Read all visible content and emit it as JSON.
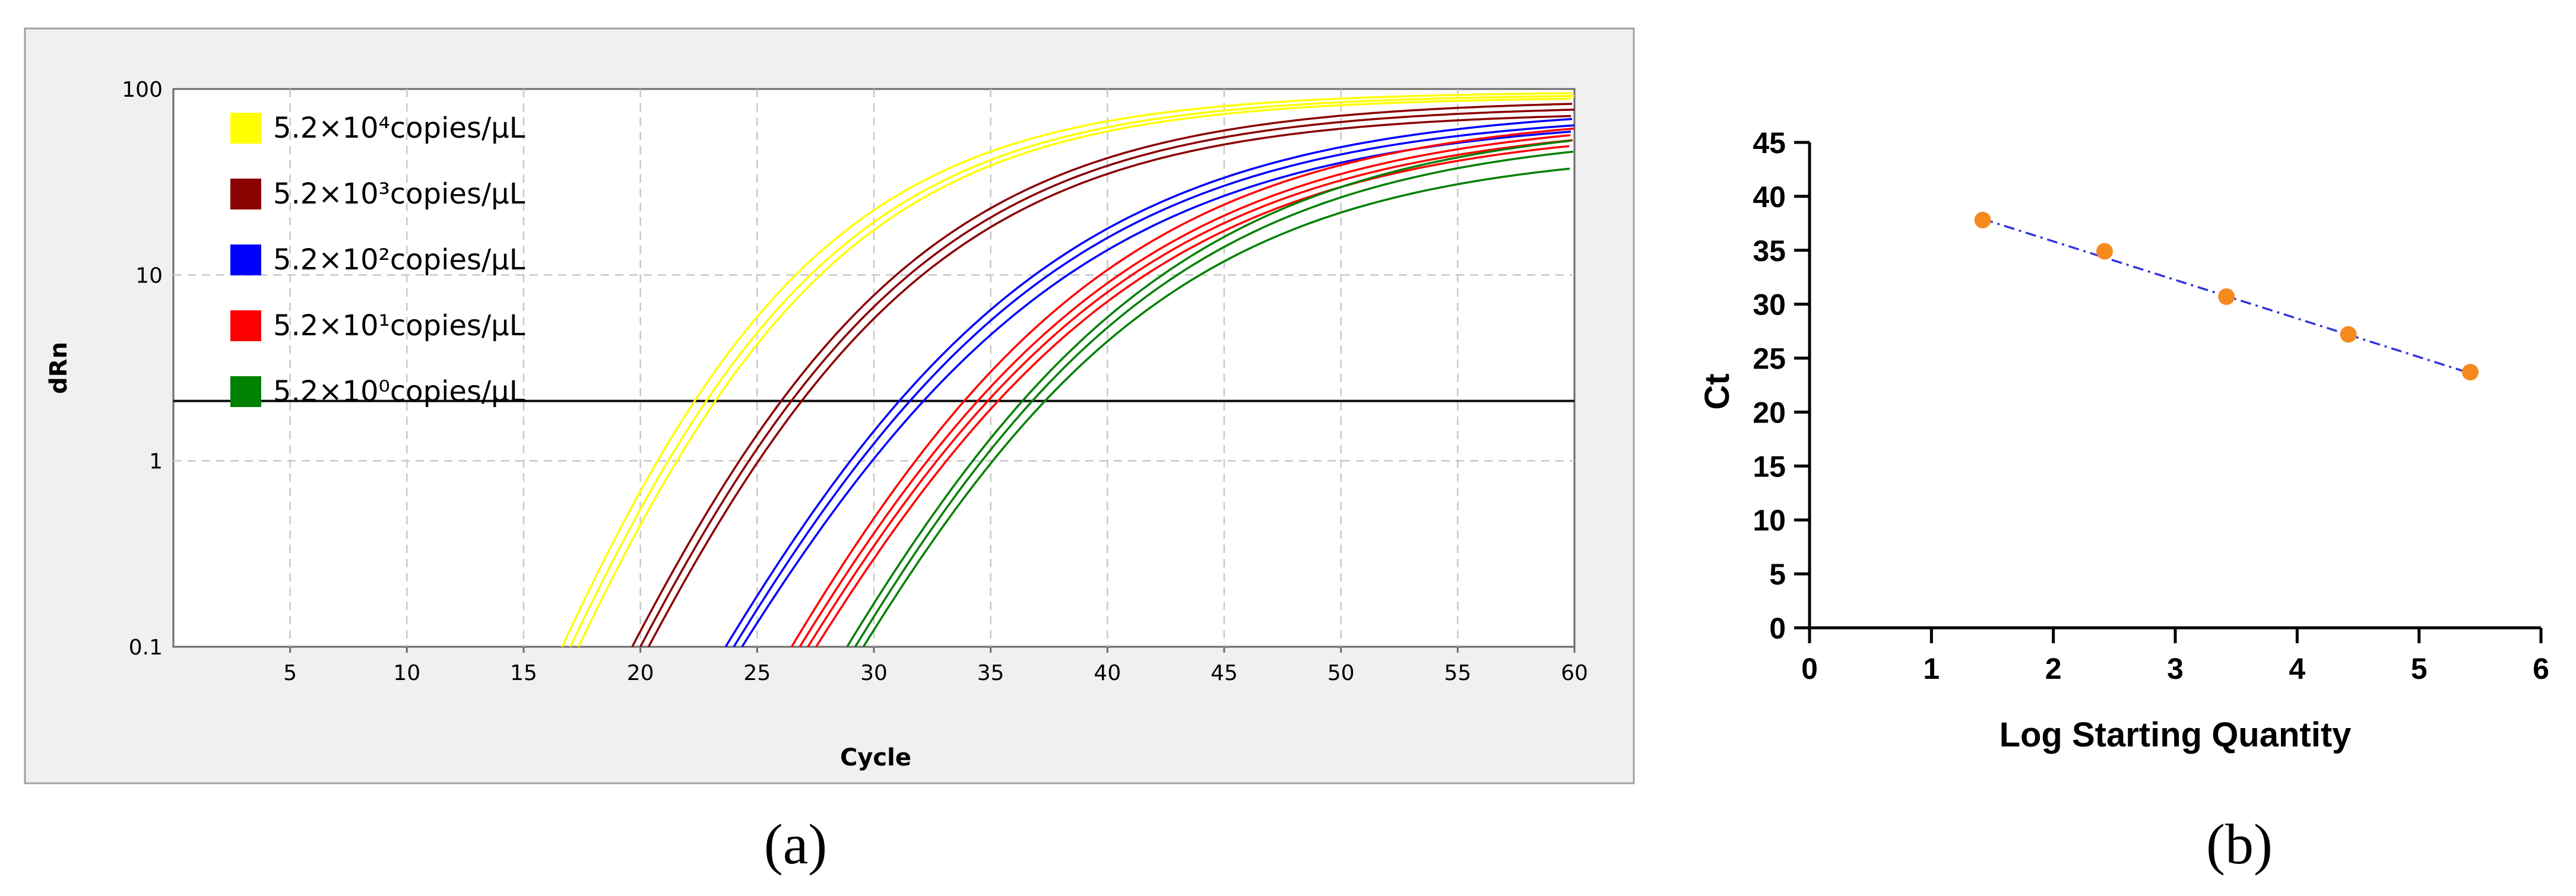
{
  "panels": {
    "a_label": "(a)",
    "b_label": "(b)"
  },
  "chart_data": [
    {
      "type": "line",
      "xlabel": "Cycle",
      "ylabel": "dRn",
      "xlim": [
        0,
        60
      ],
      "ylim": [
        0.1,
        100
      ],
      "yscale": "log",
      "x_ticks": [
        5,
        10,
        15,
        20,
        25,
        30,
        35,
        40,
        45,
        50,
        55,
        60
      ],
      "y_ticks": [
        0.1,
        1,
        10,
        100
      ],
      "y_tick_labels": [
        "0.1",
        "1",
        "10",
        "100"
      ],
      "grid": true,
      "legend_position": "top-left",
      "threshold": 2.1,
      "series": [
        {
          "name": "5.2×10⁴copies/μL",
          "color": "#ffff00",
          "start": 17.0,
          "ct": 22.8,
          "plateaus": [
            97,
            94,
            91
          ]
        },
        {
          "name": "5.2×10³copies/μL",
          "color": "#8b0000",
          "start": 20.0,
          "ct": 26.5,
          "plateaus": [
            88,
            82,
            76
          ]
        },
        {
          "name": "5.2×10²copies/μL",
          "color": "#0000ff",
          "start": 24.0,
          "ct": 31.6,
          "plateaus": [
            82,
            76,
            72
          ]
        },
        {
          "name": "5.2×10¹copies/μL",
          "color": "#ff0000",
          "start": 27.0,
          "ct": 34.6,
          "plateaus": [
            76,
            72,
            68,
            64
          ]
        },
        {
          "name": "5.2×10⁰copies/μL",
          "color": "#008000",
          "start": 29.2,
          "ct": 36.8,
          "plateaus": [
            70,
            60,
            48
          ]
        }
      ]
    },
    {
      "type": "scatter",
      "xlabel": "Log Starting Quantity",
      "ylabel": "Ct",
      "xlim": [
        0,
        6
      ],
      "ylim": [
        0,
        45
      ],
      "x_ticks": [
        0,
        1,
        2,
        3,
        4,
        5,
        6
      ],
      "y_ticks": [
        0,
        5,
        10,
        15,
        20,
        25,
        30,
        35,
        40,
        45
      ],
      "grid": false,
      "point_color": "#f58a1f",
      "fit_line_color": "#3333dd",
      "points": [
        {
          "x": 1.42,
          "y": 37.8
        },
        {
          "x": 2.42,
          "y": 34.9
        },
        {
          "x": 3.42,
          "y": 30.7
        },
        {
          "x": 4.42,
          "y": 27.2
        },
        {
          "x": 5.42,
          "y": 23.7
        }
      ],
      "fit": {
        "x": [
          1.42,
          5.42
        ],
        "y": [
          37.9,
          23.6
        ]
      }
    }
  ]
}
